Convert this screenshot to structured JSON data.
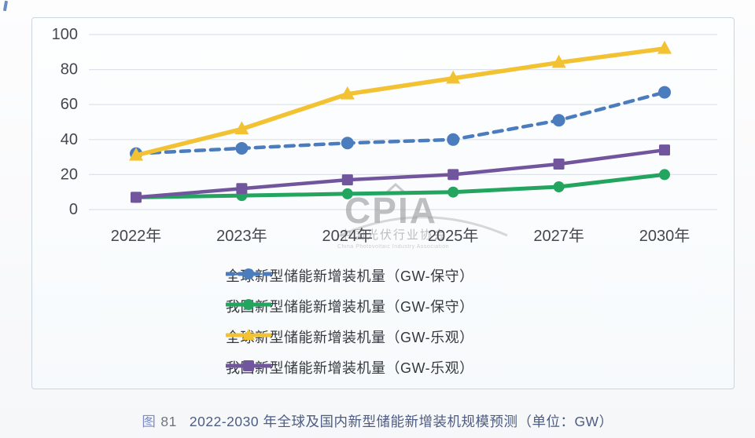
{
  "watermark": {
    "logo": "CPIA",
    "subtitle": "中国光伏行业协会",
    "subtext": "China Photovoltaic Industry Association"
  },
  "caption": {
    "figure_char": "图",
    "figure_num": "81",
    "text": "2022-2030 年全球及国内新型储能新增装机规模预测（单位：GW）"
  },
  "colors": {
    "global_conservative": "#4b7cbe",
    "china_conservative": "#23a55f",
    "global_optimistic": "#f2c233",
    "china_optimistic": "#71569e",
    "gridline": "#dde2e8",
    "axis_text": "#43474e",
    "panel_border": "#ccd5de",
    "watermark_gray": "#8e8e8e"
  },
  "chart_data": {
    "type": "line",
    "title": "",
    "xlabel": "",
    "ylabel": "",
    "categories": [
      "2022年",
      "2023年",
      "2024年",
      "2025年",
      "2027年",
      "2030年"
    ],
    "series": [
      {
        "name": "全球新型储能新增装机量（GW-保守）",
        "values": [
          32,
          35,
          38,
          40,
          51,
          67
        ],
        "color": "#4b7cbe",
        "dashed": true,
        "marker": "circle",
        "line_width": 4.5,
        "marker_size": 8
      },
      {
        "name": "我国新型储能新增装机量（GW-保守）",
        "values": [
          7,
          8,
          9,
          10,
          13,
          20
        ],
        "color": "#23a55f",
        "dashed": false,
        "marker": "circle",
        "line_width": 5,
        "marker_size": 7
      },
      {
        "name": "全球新型储能新增装机量（GW-乐观）",
        "values": [
          31,
          46,
          66,
          75,
          84,
          92
        ],
        "color": "#f2c233",
        "dashed": false,
        "marker": "triangle",
        "line_width": 5.5,
        "marker_size": 9
      },
      {
        "name": "我国新型储能新增装机量（GW-乐观）",
        "values": [
          7,
          12,
          17,
          20,
          26,
          34
        ],
        "color": "#71569e",
        "dashed": false,
        "marker": "square",
        "line_width": 4.5,
        "marker_size": 7
      }
    ],
    "ylim": [
      0,
      100
    ],
    "yticks": [
      0,
      20,
      40,
      60,
      80,
      100
    ],
    "grid": true,
    "legend_position": "bottom-inside"
  }
}
